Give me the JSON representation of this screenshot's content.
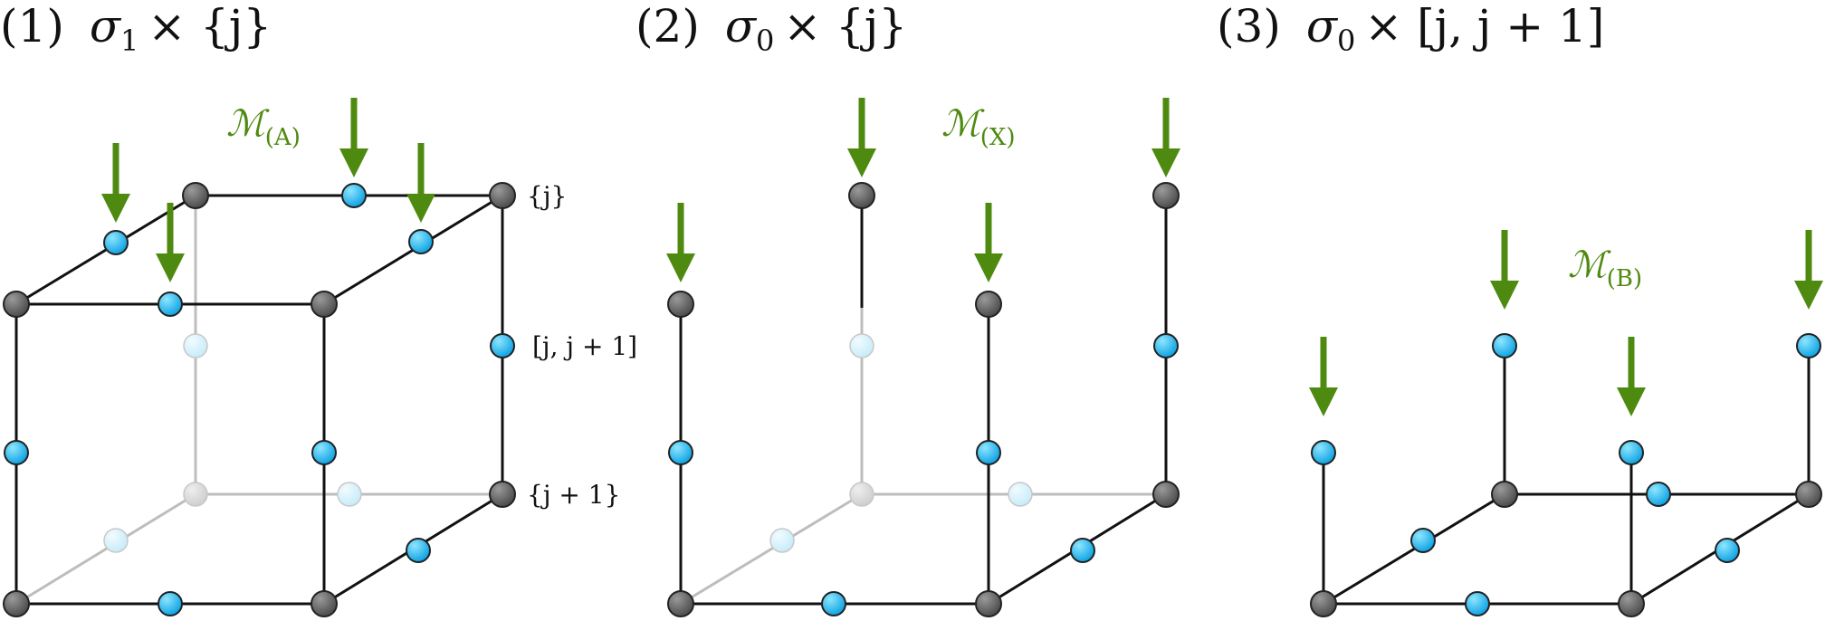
{
  "panels": [
    {
      "index": "(1)",
      "title_symbol": "σ",
      "title_sub": "1",
      "title_rest": "× {j}",
      "m_label": "ℳ",
      "m_sub": "(A)",
      "side_labels": [
        "{j}",
        "[j, j + 1]",
        "{j + 1}"
      ]
    },
    {
      "index": "(2)",
      "title_symbol": "σ",
      "title_sub": "0",
      "title_rest": "× {j}",
      "m_label": "ℳ",
      "m_sub": "(X)"
    },
    {
      "index": "(3)",
      "title_symbol": "σ",
      "title_sub": "0",
      "title_rest": "× [j, j + 1]",
      "m_label": "ℳ",
      "m_sub": "(B)"
    }
  ],
  "colors": {
    "edge": "#111111",
    "hidden_edge": "#bdbdbd",
    "gray_node": "#6b6b6b",
    "blue_node": "#26b8f0",
    "arrow": "#4f8a10"
  }
}
